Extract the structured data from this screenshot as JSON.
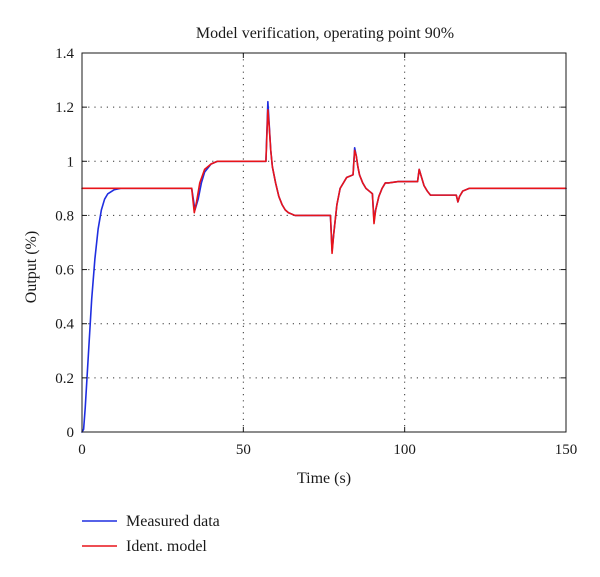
{
  "chart_data": {
    "type": "line",
    "title": "Model verification, operating point 90%",
    "xlabel": "Time (s)",
    "ylabel": "Output (%)",
    "xlim": [
      0,
      150
    ],
    "ylim": [
      0,
      1.4
    ],
    "xticks": [
      0,
      50,
      100,
      150
    ],
    "yticks": [
      0,
      0.2,
      0.4,
      0.6,
      0.8,
      1,
      1.2,
      1.4
    ],
    "xtick_labels": [
      "0",
      "50",
      "100",
      "150"
    ],
    "ytick_labels": [
      "0",
      "0.2",
      "0.4",
      "0.6",
      "0.8",
      "1",
      "1.2",
      "1.4"
    ],
    "grid": true,
    "legend_position": "below",
    "series": [
      {
        "name": "Measured data",
        "color": "#1f2ee0",
        "x": [
          0,
          0.5,
          1,
          2,
          3,
          4,
          5,
          6,
          7,
          8,
          10,
          12,
          20,
          30,
          34,
          35,
          36,
          37,
          38,
          40,
          42,
          45,
          50,
          57,
          57.6,
          58,
          58.5,
          59,
          60,
          61,
          62,
          63,
          64,
          65,
          66,
          70,
          77,
          77.5,
          78,
          79,
          80,
          82,
          84,
          84.5,
          85,
          85.5,
          86,
          87,
          88,
          89,
          90,
          90.5,
          91,
          92,
          93,
          94,
          95,
          98,
          100,
          104,
          104.5,
          105,
          106,
          107,
          108,
          110,
          116,
          116.5,
          117,
          118,
          120,
          125,
          130,
          140,
          150
        ],
        "y": [
          0,
          0.01,
          0.09,
          0.29,
          0.49,
          0.64,
          0.75,
          0.82,
          0.86,
          0.88,
          0.895,
          0.9,
          0.9,
          0.9,
          0.9,
          0.82,
          0.86,
          0.92,
          0.96,
          0.99,
          1.0,
          1.0,
          1.0,
          1.0,
          1.22,
          1.14,
          1.04,
          0.98,
          0.92,
          0.87,
          0.84,
          0.82,
          0.81,
          0.805,
          0.8,
          0.8,
          0.8,
          0.67,
          0.73,
          0.84,
          0.9,
          0.94,
          0.95,
          1.05,
          1.02,
          0.98,
          0.95,
          0.92,
          0.9,
          0.89,
          0.88,
          0.78,
          0.82,
          0.87,
          0.9,
          0.92,
          0.92,
          0.925,
          0.925,
          0.925,
          0.97,
          0.95,
          0.91,
          0.89,
          0.875,
          0.875,
          0.875,
          0.85,
          0.87,
          0.89,
          0.9,
          0.9,
          0.9,
          0.9,
          0.9
        ]
      },
      {
        "name": "Ident. model",
        "color": "#e8141a",
        "x": [
          0,
          34,
          34.8,
          35.5,
          36.5,
          38,
          40,
          42,
          45,
          50,
          57,
          57.6,
          58,
          58.5,
          59,
          60,
          61,
          62,
          63,
          64,
          65,
          66,
          70,
          77,
          77.5,
          78,
          79,
          80,
          82,
          84,
          84.5,
          85,
          85.5,
          86,
          87,
          88,
          89,
          90,
          90.5,
          91,
          92,
          93,
          94,
          95,
          98,
          100,
          104,
          104.5,
          105,
          106,
          107,
          108,
          110,
          116,
          116.5,
          117,
          118,
          120,
          125,
          130,
          140,
          150
        ],
        "y": [
          0.9,
          0.9,
          0.81,
          0.85,
          0.92,
          0.97,
          0.99,
          1.0,
          1.0,
          1.0,
          1.0,
          1.19,
          1.13,
          1.04,
          0.98,
          0.92,
          0.87,
          0.84,
          0.82,
          0.81,
          0.805,
          0.8,
          0.8,
          0.8,
          0.66,
          0.73,
          0.84,
          0.9,
          0.94,
          0.95,
          1.04,
          1.02,
          0.98,
          0.95,
          0.92,
          0.9,
          0.89,
          0.88,
          0.77,
          0.82,
          0.87,
          0.9,
          0.92,
          0.92,
          0.925,
          0.925,
          0.925,
          0.97,
          0.95,
          0.91,
          0.89,
          0.875,
          0.875,
          0.875,
          0.85,
          0.87,
          0.89,
          0.9,
          0.9,
          0.9,
          0.9,
          0.9
        ]
      }
    ]
  }
}
